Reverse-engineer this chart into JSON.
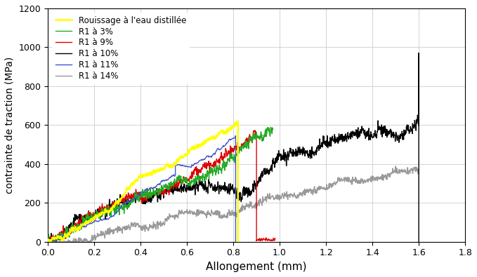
{
  "title": "",
  "xlabel": "Allongement (mm)",
  "ylabel": "contrainte de traction (MPa)",
  "xlim": [
    0,
    1.8
  ],
  "ylim": [
    0,
    1200
  ],
  "xticks": [
    0,
    0.2,
    0.4,
    0.6,
    0.8,
    1.0,
    1.2,
    1.4,
    1.6,
    1.8
  ],
  "yticks": [
    0,
    200,
    400,
    600,
    800,
    1000,
    1200
  ],
  "legend_entries": [
    "Rouissage à l'eau distillée",
    "R1 à 3%",
    "R1 à 9%",
    "R1 à 10%",
    "R1 à 11%",
    "R1 à 14%"
  ],
  "colors": [
    "#ffff00",
    "#22aa22",
    "#dd0000",
    "#000000",
    "#4455cc",
    "#999999"
  ],
  "linewidths": [
    1.8,
    1.0,
    1.0,
    1.0,
    1.0,
    1.0
  ],
  "background_color": "#ffffff",
  "grid_color": "#cccccc"
}
